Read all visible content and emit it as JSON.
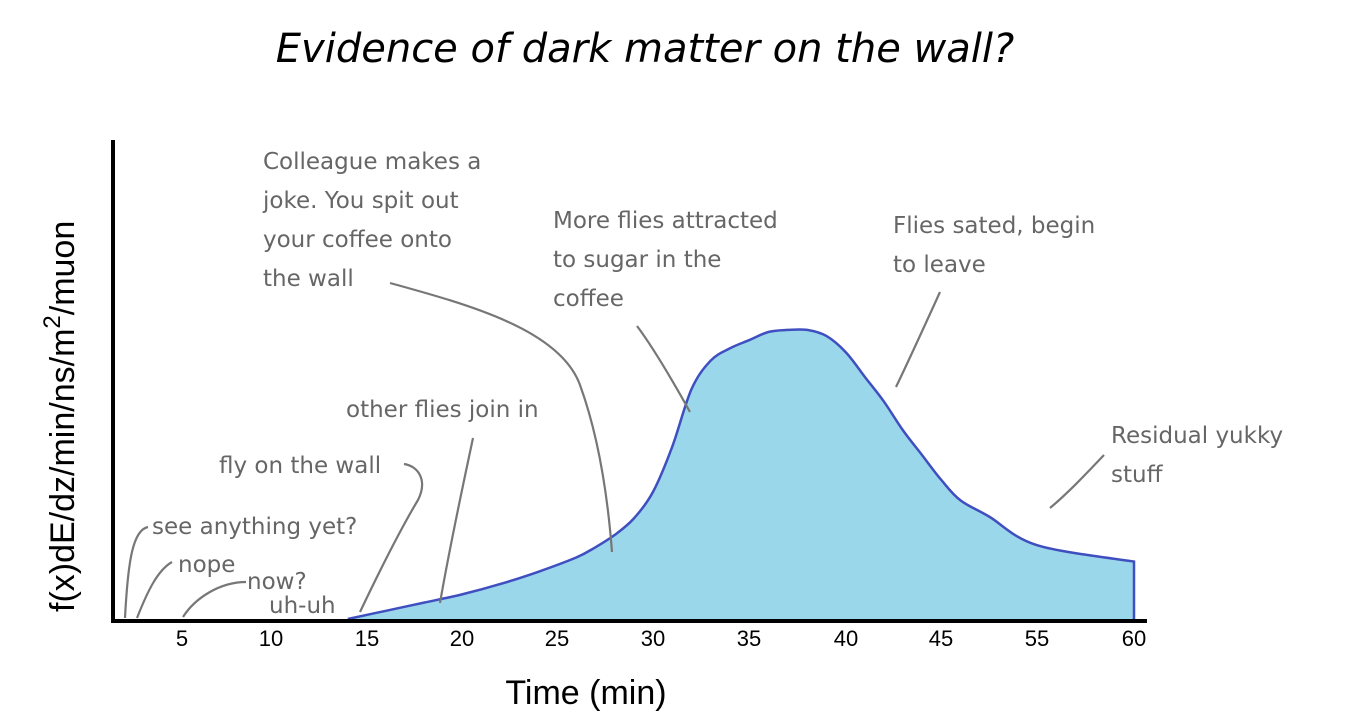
{
  "chart_data": {
    "type": "area",
    "title": "Evidence of dark matter on the wall?",
    "xlabel": "Time (min)",
    "ylabel": "f(x)dE/dz/min/ns/m",
    "ylabel_sup": "2",
    "ylabel_tail": "/muon",
    "xticks": [
      "5",
      "10",
      "15",
      "20",
      "25",
      "30",
      "35",
      "40",
      "45",
      "55",
      "60"
    ],
    "grid": false,
    "legend": "none",
    "colors": {
      "fill": "#9bd7ea",
      "line": "#3f4fc0",
      "annotation": "#666666"
    },
    "series": [
      {
        "x": [
          14,
          16,
          18,
          20,
          22,
          24,
          26,
          27,
          28,
          29,
          30,
          31,
          32,
          33,
          34,
          35,
          36,
          37,
          38,
          39,
          40,
          41,
          42,
          43,
          44,
          45,
          47,
          50,
          55,
          60
        ],
        "y": [
          0,
          0.02,
          0.04,
          0.06,
          0.085,
          0.115,
          0.15,
          0.175,
          0.205,
          0.245,
          0.31,
          0.42,
          0.56,
          0.63,
          0.66,
          0.68,
          0.7,
          0.705,
          0.705,
          0.69,
          0.65,
          0.59,
          0.53,
          0.46,
          0.4,
          0.34,
          0.29,
          0.25,
          0.18,
          0.14
        ]
      }
    ],
    "annotations": [
      {
        "lines": [
          "Colleague makes a",
          "joke. You spit out",
          "your coffee onto",
          "the wall"
        ]
      },
      {
        "lines": [
          "More flies attracted",
          "to sugar in the",
          "coffee"
        ]
      },
      {
        "lines": [
          "Flies sated, begin",
          "to leave"
        ]
      },
      {
        "lines": [
          "other flies join in"
        ]
      },
      {
        "lines": [
          "fly on the wall"
        ]
      },
      {
        "lines": [
          "Residual yukky",
          "stuff"
        ]
      },
      {
        "lines": [
          "see anything yet?"
        ]
      },
      {
        "lines": [
          "nope"
        ]
      },
      {
        "lines": [
          "now?"
        ]
      },
      {
        "lines": [
          "uh-uh"
        ]
      }
    ]
  }
}
